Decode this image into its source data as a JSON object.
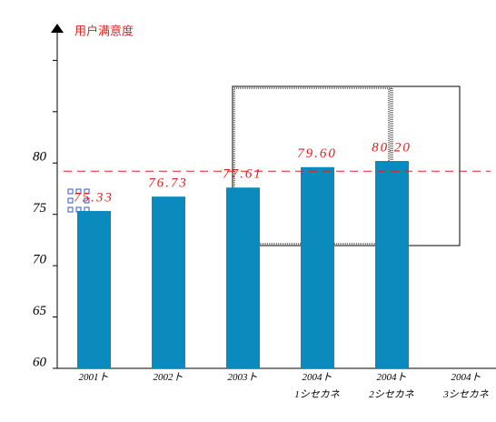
{
  "chart_data": {
    "type": "bar",
    "title": "用户满意度",
    "categories": [
      "2001ト",
      "2002ト",
      "2003ト",
      "2004ト\n1シセカネ",
      "2004ト\n2シセカネ",
      "2004ト\n3シセカネ"
    ],
    "values": [
      75.33,
      76.73,
      77.61,
      79.6,
      80.2,
      null
    ],
    "value_labels": [
      "75.33",
      "76.73",
      "77.61",
      "79.60",
      "80.20",
      null
    ],
    "color": "#0b8bbd",
    "label_color": "#e0201c",
    "ylim": [
      60,
      93.4
    ],
    "yticks": [
      60,
      65,
      70,
      75,
      80
    ],
    "minor_yticks": [
      85,
      90
    ],
    "reference_line": 79.2,
    "reference_color": "#e0201c"
  }
}
